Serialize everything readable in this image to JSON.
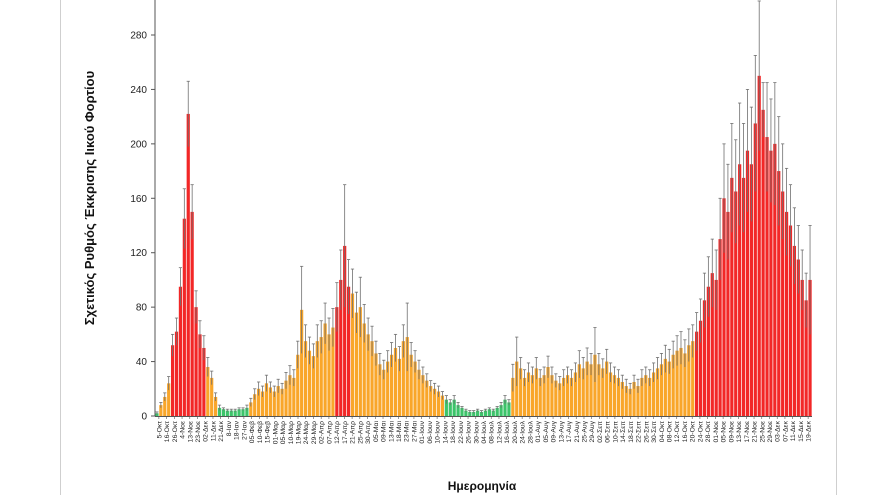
{
  "chart_data": {
    "type": "bar",
    "xlabel": "Ημερομηνία",
    "ylabel": "Σχετικός Ρυθμός Έκκρισης Ιικού Φορτίου",
    "ylim": [
      0,
      320
    ],
    "y_ticks": [
      0,
      40,
      80,
      120,
      160,
      200,
      240,
      280
    ],
    "grid": false,
    "legend": "none",
    "x_tick_labels": [
      "5-Οκτ",
      "16-Οκτ",
      "26-Οκτ",
      "4-Νοε",
      "13-Νοε",
      "23-Νοε",
      "02-Δεκ",
      "11-Δεκ",
      "21-Δεκ",
      "8-Ιαν",
      "18-Ιαν",
      "27-Ιαν",
      "05-Φεβ",
      "10-Φεβ",
      "15-Φεβ",
      "01-Μαρ",
      "05-Μαρ",
      "10-Μαρ",
      "19-Μαρ",
      "24-Μαρ",
      "29-Μαρ",
      "02-Απρ",
      "07-Απρ",
      "12-Απρ",
      "17-Απρ",
      "21-Απρ",
      "25-Απρ",
      "30-Απρ",
      "05-Μαι",
      "09-Μαι",
      "13-Μαι",
      "18-Μαι",
      "23-Μαι",
      "27-Μαι",
      "01-Ιουν",
      "06-Ιουν",
      "10-Ιουν",
      "14-Ιουν",
      "18-Ιουν",
      "22-Ιουν",
      "26-Ιουν",
      "30-Ιουν",
      "04-Ιουλ",
      "08-Ιουλ",
      "12-Ιουλ",
      "16-Ιουλ",
      "20-Ιουλ",
      "24-Ιουλ",
      "28-Ιουλ",
      "01-Αυγ",
      "05-Αυγ",
      "09-Αυγ",
      "13-Αυγ",
      "17-Αυγ",
      "21-Αυγ",
      "25-Αυγ",
      "29-Αυγ",
      "02-Σεπ",
      "06-Σεπ",
      "10-Σεπ",
      "14-Σεπ",
      "18-Σεπ",
      "22-Σεπ",
      "26-Σεπ",
      "30-Σεπ",
      "04-Οκτ",
      "08-Οκτ",
      "12-Οκτ",
      "16-Οκτ",
      "20-Οκτ",
      "24-Οκτ",
      "28-Οκτ",
      "01-Νοε",
      "05-Νοε",
      "09-Νοε",
      "13-Νοε",
      "17-Νοε",
      "21-Νοε",
      "25-Νοε",
      "29-Νοε",
      "03-Δεκ",
      "07-Δεκ",
      "11-Δεκ",
      "15-Δεκ",
      "19-Δεκ"
    ],
    "values": [
      2,
      8,
      14,
      24,
      52,
      62,
      95,
      145,
      222,
      150,
      80,
      60,
      50,
      36,
      28,
      14,
      6,
      5,
      4,
      4,
      4,
      5,
      5,
      6,
      10,
      16,
      20,
      18,
      24,
      21,
      18,
      22,
      20,
      26,
      30,
      28,
      45,
      78,
      55,
      48,
      44,
      55,
      58,
      68,
      60,
      65,
      80,
      100,
      125,
      95,
      90,
      76,
      80,
      68,
      60,
      55,
      46,
      38,
      34,
      40,
      45,
      50,
      42,
      55,
      58,
      45,
      40,
      34,
      30,
      26,
      22,
      20,
      18,
      15,
      12,
      10,
      12,
      8,
      6,
      4,
      3,
      3,
      4,
      3,
      4,
      5,
      4,
      6,
      8,
      12,
      10,
      28,
      40,
      35,
      28,
      32,
      30,
      35,
      28,
      30,
      36,
      30,
      26,
      24,
      28,
      30,
      28,
      32,
      38,
      35,
      40,
      38,
      45,
      38,
      35,
      40,
      32,
      30,
      28,
      25,
      22,
      20,
      25,
      22,
      28,
      30,
      28,
      32,
      35,
      38,
      42,
      40,
      45,
      48,
      50,
      46,
      52,
      55,
      62,
      70,
      85,
      95,
      105,
      100,
      130,
      160,
      150,
      175,
      165,
      185,
      175,
      195,
      185,
      215,
      250,
      225,
      205,
      195,
      200,
      180,
      165,
      150,
      140,
      125,
      115,
      100,
      85,
      100
    ],
    "error": [
      1,
      2,
      3,
      5,
      8,
      10,
      14,
      22,
      24,
      20,
      12,
      10,
      9,
      7,
      5,
      3,
      2,
      1,
      1,
      1,
      1,
      1,
      1,
      2,
      3,
      4,
      5,
      4,
      6,
      4,
      4,
      5,
      4,
      6,
      7,
      6,
      10,
      32,
      12,
      10,
      9,
      12,
      12,
      15,
      12,
      14,
      18,
      22,
      45,
      20,
      18,
      15,
      22,
      14,
      12,
      11,
      9,
      8,
      7,
      8,
      9,
      10,
      9,
      12,
      25,
      9,
      8,
      7,
      6,
      5,
      4,
      4,
      4,
      3,
      3,
      2,
      3,
      2,
      1,
      1,
      1,
      1,
      1,
      1,
      1,
      1,
      1,
      1,
      2,
      3,
      2,
      10,
      18,
      8,
      6,
      7,
      6,
      8,
      6,
      6,
      8,
      6,
      5,
      5,
      6,
      6,
      6,
      7,
      10,
      8,
      10,
      8,
      20,
      8,
      7,
      9,
      7,
      6,
      6,
      5,
      5,
      4,
      5,
      5,
      6,
      6,
      6,
      7,
      8,
      8,
      10,
      9,
      10,
      11,
      12,
      10,
      12,
      12,
      14,
      16,
      20,
      22,
      25,
      22,
      30,
      40,
      35,
      40,
      38,
      45,
      40,
      45,
      42,
      50,
      55,
      20,
      40,
      38,
      45,
      40,
      35,
      32,
      30,
      28,
      25,
      22,
      20,
      40
    ],
    "level": [
      0,
      1,
      1,
      1,
      2,
      2,
      2,
      2,
      2,
      2,
      2,
      2,
      2,
      1,
      1,
      1,
      0,
      0,
      0,
      0,
      0,
      0,
      0,
      0,
      1,
      1,
      1,
      1,
      1,
      1,
      1,
      1,
      1,
      1,
      1,
      1,
      1,
      1,
      1,
      1,
      1,
      1,
      1,
      1,
      1,
      1,
      2,
      2,
      2,
      2,
      1,
      1,
      1,
      1,
      1,
      1,
      1,
      1,
      1,
      1,
      1,
      1,
      1,
      1,
      1,
      1,
      1,
      1,
      1,
      1,
      1,
      1,
      1,
      1,
      0,
      0,
      0,
      0,
      0,
      0,
      0,
      0,
      0,
      0,
      0,
      0,
      0,
      0,
      0,
      0,
      0,
      1,
      1,
      1,
      1,
      1,
      1,
      1,
      1,
      1,
      1,
      1,
      1,
      1,
      1,
      1,
      1,
      1,
      1,
      1,
      1,
      1,
      1,
      1,
      1,
      1,
      1,
      1,
      1,
      1,
      1,
      1,
      1,
      1,
      1,
      1,
      1,
      1,
      1,
      1,
      1,
      1,
      1,
      1,
      1,
      1,
      1,
      1,
      2,
      2,
      2,
      2,
      2,
      2,
      2,
      2,
      2,
      2,
      2,
      2,
      2,
      2,
      2,
      2,
      2,
      2,
      2,
      2,
      2,
      2,
      2,
      2,
      2,
      2,
      2,
      2,
      2,
      2
    ],
    "level_colors": [
      "#3cc46a",
      "#f9a62a",
      "#f22727"
    ],
    "error_bar_color": "#707070",
    "axis_color": "#555555"
  }
}
